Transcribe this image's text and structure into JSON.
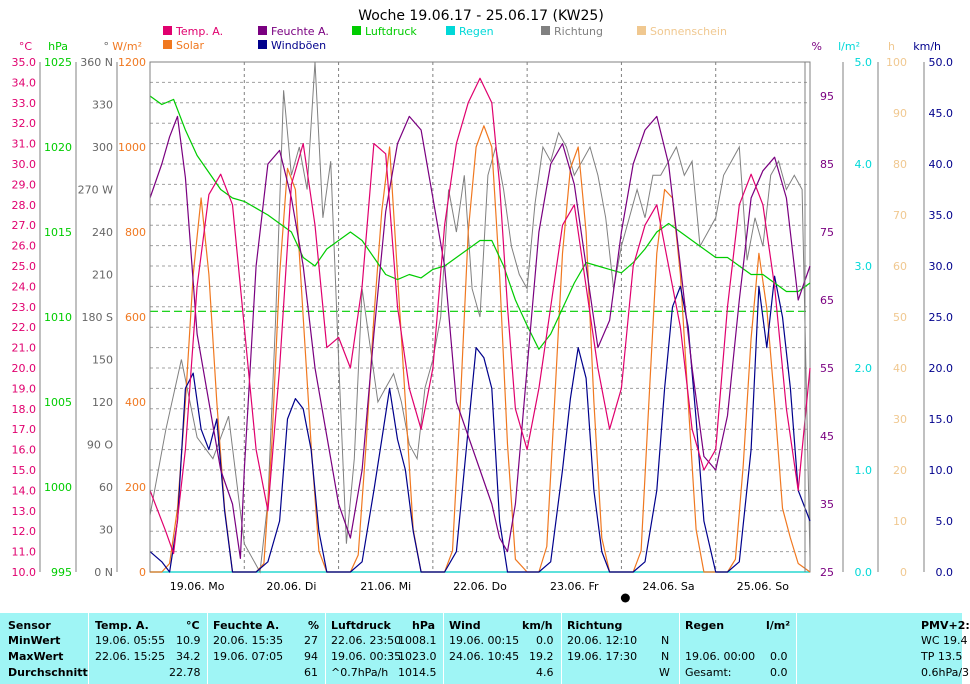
{
  "chart_data": {
    "type": "line",
    "title": "Woche 19.06.17 - 25.06.17 (KW25)",
    "legend": [
      {
        "label": "Temp. A.",
        "color": "#e0006e"
      },
      {
        "label": "Solar",
        "color": "#f07820"
      },
      {
        "label": "Feuchte A.",
        "color": "#7a0080"
      },
      {
        "label": "Windböen",
        "color": "#00008c"
      },
      {
        "label": "Luftdruck",
        "color": "#00cc00"
      },
      {
        "label": "Regen",
        "color": "#00d8d8"
      },
      {
        "label": "Richtung",
        "color": "#808080"
      },
      {
        "label": "Sonnenschein",
        "color": "#f0c890"
      }
    ],
    "legend_placement": "top",
    "x_ticks": [
      "19.06. Mo",
      "20.06. Di",
      "21.06. Mi",
      "22.06. Do",
      "23.06. Fr",
      "24.06. Sa",
      "25.06. So"
    ],
    "x_range_hours": [
      0,
      168
    ],
    "grid": true,
    "axes": {
      "temp": {
        "unit": "°C",
        "range": [
          10,
          35
        ],
        "ticks": [
          "35.0",
          "34.0",
          "33.0",
          "32.0",
          "31.0",
          "30.0",
          "29.0",
          "28.0",
          "27.0",
          "26.0",
          "25.0",
          "24.0",
          "23.0",
          "22.0",
          "21.0",
          "20.0",
          "19.0",
          "18.0",
          "17.0",
          "16.0",
          "15.0",
          "14.0",
          "13.0",
          "12.0",
          "11.0",
          "10.0"
        ],
        "color": "#e0006e"
      },
      "pressure": {
        "unit": "hPa",
        "range": [
          995,
          1025
        ],
        "ticks": [
          "1025",
          "1020",
          "1015",
          "1010",
          "1005",
          "1000",
          "995"
        ],
        "color": "#00cc00"
      },
      "direction": {
        "unit": "°",
        "range": [
          0,
          360
        ],
        "ticks": [
          "360 N",
          "330",
          "300",
          "270 W",
          "240",
          "210",
          "180 S",
          "150",
          "120",
          "90 O",
          "60",
          "30",
          "0 N"
        ],
        "color": "#666666"
      },
      "solar": {
        "unit": "W/m²",
        "range": [
          0,
          1200
        ],
        "ticks": [
          "1200",
          "1000",
          "800",
          "600",
          "400",
          "200",
          "0"
        ],
        "color": "#f07820"
      },
      "humidity": {
        "unit": "%",
        "range": [
          25,
          100
        ],
        "ticks": [
          "95",
          "85",
          "75",
          "65",
          "55",
          "45",
          "35",
          "25"
        ],
        "color": "#7a0080"
      },
      "rain": {
        "unit": "l/m²",
        "range": [
          0,
          5
        ],
        "ticks": [
          "5.0",
          "4.0",
          "3.0",
          "2.0",
          "1.0",
          "0.0"
        ],
        "color": "#00d8d8"
      },
      "sunshine": {
        "unit": "h",
        "range": [
          0,
          100
        ],
        "ticks": [
          "100",
          "90",
          "80",
          "70",
          "60",
          "50",
          "40",
          "30",
          "20",
          "10",
          "0"
        ],
        "color": "#f0c890"
      },
      "wind": {
        "unit": "km/h",
        "range": [
          0,
          50
        ],
        "ticks": [
          "50.0",
          "45.0",
          "40.0",
          "35.0",
          "30.0",
          "25.0",
          "20.0",
          "15.0",
          "10.0",
          "5.0",
          "0.0"
        ],
        "color": "#00008c"
      }
    },
    "average_temp_line": 22.78,
    "series": [
      {
        "name": "Temp. A.",
        "axis": "temp",
        "color": "#e0006e",
        "x": [
          0,
          4,
          6,
          9,
          12,
          15,
          18,
          21,
          24,
          27,
          30,
          33,
          36,
          39,
          42,
          45,
          48,
          51,
          54,
          57,
          60,
          63,
          66,
          69,
          72,
          75,
          78,
          81,
          84,
          87,
          89,
          91,
          93,
          96,
          99,
          102,
          105,
          108,
          111,
          114,
          117,
          120,
          123,
          126,
          129,
          132,
          135,
          138,
          141,
          144,
          147,
          150,
          153,
          156,
          159,
          162,
          165,
          168
        ],
        "y": [
          14,
          12,
          10.9,
          16,
          24,
          28.5,
          29.5,
          28,
          22,
          16,
          13,
          20,
          29,
          31,
          27,
          21,
          21.5,
          20,
          24,
          31,
          30.5,
          23,
          19,
          17,
          20,
          27,
          31,
          33,
          34.2,
          33,
          29,
          23,
          18,
          16,
          19,
          23,
          27,
          28,
          24,
          20,
          17,
          19,
          25,
          27,
          28,
          25,
          22,
          17,
          15,
          16,
          23,
          28,
          29.5,
          28,
          24,
          18,
          14,
          20
        ]
      },
      {
        "name": "Feuchte A.",
        "axis": "humidity",
        "color": "#7a0080",
        "x": [
          0,
          3,
          5,
          7,
          9,
          12,
          15,
          18,
          21,
          23,
          24,
          27,
          30,
          33,
          36,
          39,
          42,
          45,
          48,
          51,
          54,
          57,
          60,
          63,
          66,
          69,
          72,
          75,
          78,
          81,
          84,
          87,
          89,
          91,
          93,
          96,
          99,
          102,
          105,
          108,
          111,
          114,
          117,
          120,
          123,
          126,
          129,
          132,
          135,
          138,
          141,
          144,
          147,
          150,
          153,
          156,
          159,
          162,
          165,
          168
        ],
        "y": [
          80,
          85,
          89,
          92,
          83,
          60,
          50,
          40,
          35,
          27,
          40,
          70,
          85,
          87,
          80,
          70,
          55,
          45,
          35,
          30,
          40,
          60,
          78,
          88,
          92,
          90,
          80,
          70,
          50,
          45,
          40,
          35,
          30,
          28,
          35,
          55,
          75,
          85,
          88,
          82,
          70,
          58,
          62,
          75,
          85,
          90,
          92,
          85,
          70,
          55,
          42,
          40,
          48,
          65,
          80,
          84,
          86,
          80,
          65,
          70
        ]
      },
      {
        "name": "Luftdruck",
        "axis": "pressure",
        "color": "#00cc00",
        "x": [
          0,
          3,
          6,
          9,
          12,
          15,
          18,
          21,
          24,
          27,
          30,
          33,
          36,
          39,
          42,
          45,
          48,
          51,
          54,
          57,
          60,
          63,
          66,
          69,
          72,
          75,
          78,
          81,
          84,
          87,
          90,
          93,
          96,
          99,
          102,
          105,
          108,
          111,
          114,
          117,
          120,
          123,
          126,
          129,
          132,
          135,
          138,
          141,
          144,
          147,
          150,
          153,
          156,
          159,
          162,
          165,
          168
        ],
        "y": [
          1023,
          1022.5,
          1022.8,
          1021,
          1019.5,
          1018.5,
          1017.5,
          1017,
          1016.8,
          1016.4,
          1016,
          1015.5,
          1015,
          1013.5,
          1013,
          1014,
          1014.5,
          1015,
          1014.5,
          1013.5,
          1012.5,
          1012.2,
          1012.5,
          1012.3,
          1012.8,
          1013,
          1013.5,
          1014,
          1014.5,
          1014.5,
          1013,
          1011,
          1009.5,
          1008.1,
          1009,
          1010.5,
          1012,
          1013.2,
          1013,
          1012.8,
          1012.6,
          1013.2,
          1014,
          1015,
          1015.5,
          1015,
          1014.5,
          1014,
          1013.5,
          1013.5,
          1013,
          1012.5,
          1012.5,
          1012,
          1011.5,
          1011.5,
          1012
        ]
      },
      {
        "name": "Windböen",
        "axis": "wind",
        "color": "#00008c",
        "x": [
          0,
          3,
          5,
          7,
          9,
          11,
          13,
          15,
          17,
          19,
          21,
          24,
          27,
          30,
          33,
          35,
          37,
          39,
          41,
          43,
          45,
          48,
          51,
          54,
          57,
          59,
          61,
          63,
          65,
          67,
          69,
          72,
          75,
          78,
          81,
          83,
          85,
          87,
          89,
          91,
          93,
          96,
          99,
          102,
          105,
          107,
          109,
          111,
          113,
          115,
          117,
          120,
          123,
          126,
          129,
          131,
          133,
          135,
          137,
          139,
          141,
          144,
          147,
          150,
          153,
          155,
          157,
          159,
          161,
          163,
          165,
          168
        ],
        "y": [
          2,
          1,
          0,
          5,
          18,
          19.5,
          14,
          12,
          15,
          6,
          0,
          0,
          0,
          1,
          5,
          15,
          17,
          16,
          12,
          4,
          0,
          0,
          0,
          1,
          8,
          13,
          18,
          13,
          10,
          4,
          0,
          0,
          0,
          2,
          14,
          22,
          21,
          18,
          5,
          0,
          0,
          0,
          0,
          1,
          10,
          17,
          22,
          19,
          8,
          2,
          0,
          0,
          0,
          1,
          8,
          18,
          26,
          28,
          24,
          15,
          5,
          0,
          0,
          1,
          12,
          28,
          22,
          29,
          25,
          18,
          8,
          5
        ]
      },
      {
        "name": "Solar",
        "axis": "solar",
        "color": "#f07820",
        "x": [
          0,
          3,
          5,
          7,
          9,
          11,
          13,
          15,
          17,
          19,
          21,
          24,
          27,
          29,
          31,
          33,
          35,
          37,
          39,
          41,
          43,
          45,
          48,
          51,
          53,
          55,
          57,
          59,
          61,
          63,
          65,
          67,
          69,
          72,
          75,
          77,
          79,
          81,
          83,
          85,
          87,
          89,
          91,
          93,
          96,
          99,
          101,
          103,
          105,
          107,
          109,
          111,
          113,
          115,
          117,
          120,
          123,
          125,
          127,
          129,
          131,
          133,
          135,
          137,
          139,
          141,
          144,
          147,
          149,
          151,
          153,
          155,
          157,
          159,
          161,
          163,
          165,
          168
        ],
        "y": [
          0,
          0,
          20,
          150,
          400,
          700,
          880,
          700,
          400,
          150,
          0,
          0,
          0,
          20,
          300,
          700,
          950,
          900,
          600,
          300,
          50,
          0,
          0,
          0,
          40,
          300,
          600,
          850,
          1000,
          700,
          400,
          100,
          0,
          0,
          0,
          50,
          400,
          800,
          1000,
          1050,
          1000,
          700,
          300,
          30,
          0,
          0,
          60,
          400,
          750,
          950,
          1000,
          800,
          400,
          80,
          0,
          0,
          0,
          50,
          400,
          750,
          900,
          880,
          700,
          400,
          100,
          0,
          0,
          0,
          30,
          250,
          550,
          750,
          620,
          400,
          150,
          80,
          20,
          0
        ]
      },
      {
        "name": "Richtung",
        "axis": "direction",
        "color": "#808080",
        "x": [
          0,
          4,
          8,
          12,
          16,
          20,
          24,
          28,
          30,
          32,
          34,
          36,
          38,
          40,
          42,
          44,
          46,
          48,
          50,
          52,
          54,
          56,
          58,
          60,
          62,
          64,
          66,
          68,
          70,
          72,
          74,
          76,
          78,
          80,
          82,
          84,
          86,
          88,
          90,
          92,
          94,
          96,
          98,
          100,
          102,
          104,
          106,
          108,
          110,
          112,
          114,
          116,
          118,
          120,
          122,
          124,
          126,
          128,
          130,
          132,
          134,
          136,
          138,
          140,
          142,
          144,
          146,
          148,
          150,
          152,
          154,
          156,
          158,
          160,
          162,
          164,
          166,
          168
        ],
        "y": [
          40,
          100,
          150,
          95,
          80,
          110,
          20,
          0,
          50,
          180,
          340,
          280,
          300,
          270,
          360,
          250,
          290,
          150,
          20,
          80,
          200,
          160,
          120,
          130,
          140,
          120,
          90,
          80,
          130,
          150,
          180,
          270,
          240,
          280,
          200,
          180,
          280,
          300,
          270,
          230,
          210,
          200,
          260,
          300,
          290,
          310,
          300,
          280,
          290,
          300,
          280,
          250,
          200,
          230,
          250,
          270,
          250,
          280,
          280,
          290,
          300,
          280,
          290,
          230,
          240,
          250,
          280,
          290,
          300,
          220,
          250,
          230,
          280,
          290,
          270,
          280,
          270,
          10
        ]
      },
      {
        "name": "Regen",
        "axis": "rain",
        "color": "#00d8d8",
        "x": [
          0,
          168
        ],
        "y": [
          0,
          0
        ]
      },
      {
        "name": "Sonnenschein",
        "axis": "sunshine",
        "color": "#f0c890",
        "x": [
          0,
          168
        ],
        "y": [
          0,
          0
        ]
      }
    ],
    "moon_marker_hour": 121
  },
  "stats": {
    "header": {
      "sensor": "Sensor",
      "temp": "Temp. A.",
      "temp_unit": "°C",
      "hum": "Feuchte A.",
      "hum_unit": "%",
      "press": "Luftdruck",
      "press_unit": "hPa",
      "wind": "Wind",
      "wind_unit": "km/h",
      "dir": "Richtung",
      "rain": "Regen",
      "rain_unit": "l/m²",
      "pmv": "PMV+2:"
    },
    "min": {
      "label": "MinWert",
      "temp_time": "19.06.  05:55",
      "temp_val": "10.9",
      "hum_time": "20.06.  15:35",
      "hum_val": "27",
      "press_time": "22.06.  23:50",
      "press_val": "1008.1",
      "wind_time": "19.06.  00:15",
      "wind_val": "0.0",
      "dir_time": "20.06.  12:10",
      "dir_val": "N",
      "pmv": "WC 19.4"
    },
    "max": {
      "label": "MaxWert",
      "temp_time": "22.06.  15:25",
      "temp_val": "34.2",
      "hum_time": "19.06.  07:05",
      "hum_val": "94",
      "press_time": "19.06.  00:35",
      "press_val": "1023.0",
      "wind_time": "24.06.  10:45",
      "wind_val": "19.2",
      "dir_time": "19.06.  17:30",
      "dir_val": "N",
      "rain_time": "19.06.  00:00",
      "rain_val": "0.0",
      "pmv": "TP 13.5"
    },
    "avg": {
      "label": "Durchschnitt",
      "temp_val": "22.78",
      "hum_val": "61",
      "press_trend": "^0.7hPa/h",
      "press_val": "1014.5",
      "wind_val": "4.6",
      "dir_val": "W",
      "rain_label": "Gesamt:",
      "rain_val": "0.0",
      "pmv": "0.6hPa/3"
    }
  }
}
